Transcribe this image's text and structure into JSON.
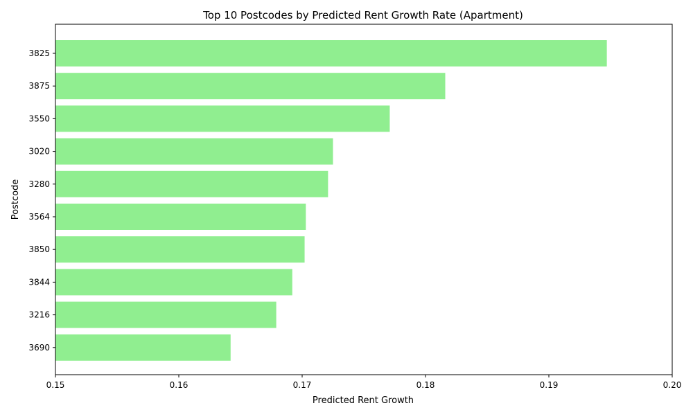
{
  "chart_data": {
    "type": "bar",
    "orientation": "horizontal",
    "title": "Top 10 Postcodes by Predicted Rent Growth Rate (Apartment)",
    "xlabel": "Predicted Rent Growth",
    "ylabel": "Postcode",
    "xlim": [
      0.15,
      0.2
    ],
    "x_ticks": [
      "0.15",
      "0.16",
      "0.17",
      "0.18",
      "0.19",
      "0.20"
    ],
    "x_tick_values": [
      0.15,
      0.16,
      0.17,
      0.18,
      0.19,
      0.2
    ],
    "categories": [
      "3825",
      "3875",
      "3550",
      "3020",
      "3280",
      "3564",
      "3850",
      "3844",
      "3216",
      "3690"
    ],
    "values": [
      0.1947,
      0.1816,
      0.1771,
      0.1725,
      0.1721,
      0.1703,
      0.1702,
      0.1692,
      0.1679,
      0.1642
    ],
    "bar_color": "#90ee90",
    "grid": false,
    "legend": "none"
  }
}
